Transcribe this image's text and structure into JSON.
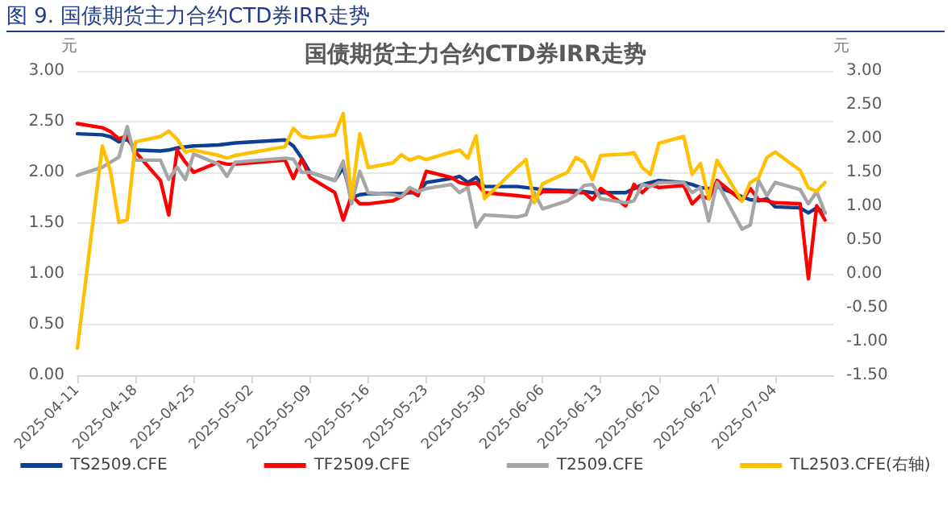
{
  "chart_data": {
    "type": "line",
    "title": "国债期货主力合约CTD券IRR走势",
    "annotations": [
      "图 9. 国债期货主力合约CTD券IRR走势"
    ],
    "ylabel": "元",
    "y2label": "元",
    "x": [
      "2025-04-11",
      "2025-04-14",
      "2025-04-15",
      "2025-04-16",
      "2025-04-17",
      "2025-04-18",
      "2025-04-21",
      "2025-04-22",
      "2025-04-23",
      "2025-04-24",
      "2025-04-25",
      "2025-04-28",
      "2025-04-29",
      "2025-04-30",
      "2025-05-06",
      "2025-05-07",
      "2025-05-08",
      "2025-05-09",
      "2025-05-12",
      "2025-05-13",
      "2025-05-14",
      "2025-05-15",
      "2025-05-16",
      "2025-05-19",
      "2025-05-20",
      "2025-05-21",
      "2025-05-22",
      "2025-05-23",
      "2025-05-26",
      "2025-05-27",
      "2025-05-28",
      "2025-05-29",
      "2025-05-30",
      "2025-06-03",
      "2025-06-04",
      "2025-06-05",
      "2025-06-06",
      "2025-06-09",
      "2025-06-10",
      "2025-06-11",
      "2025-06-12",
      "2025-06-13",
      "2025-06-16",
      "2025-06-17",
      "2025-06-18",
      "2025-06-19",
      "2025-06-20",
      "2025-06-23",
      "2025-06-24",
      "2025-06-25",
      "2025-06-26",
      "2025-06-27",
      "2025-06-30",
      "2025-07-01",
      "2025-07-02",
      "2025-07-03",
      "2025-07-04",
      "2025-07-07",
      "2025-07-08",
      "2025-07-09",
      "2025-07-10"
    ],
    "series": [
      {
        "name": "TS2509.CFE",
        "color": "#0d3f94",
        "values": [
          2.38,
          2.37,
          2.35,
          2.3,
          2.33,
          2.22,
          2.21,
          2.22,
          2.24,
          2.25,
          2.26,
          2.27,
          2.28,
          2.29,
          2.32,
          2.26,
          2.14,
          2.0,
          1.92,
          2.05,
          1.75,
          1.78,
          1.79,
          1.79,
          1.79,
          1.8,
          1.8,
          1.9,
          1.94,
          1.96,
          1.9,
          1.95,
          1.86,
          1.86,
          1.85,
          1.84,
          1.83,
          1.82,
          1.82,
          1.81,
          1.8,
          1.8,
          1.8,
          1.84,
          1.88,
          1.9,
          1.92,
          1.9,
          1.88,
          1.85,
          1.84,
          1.86,
          1.76,
          1.73,
          1.72,
          1.74,
          1.66,
          1.65,
          1.6,
          1.65,
          1.6
        ]
      },
      {
        "name": "TF2509.CFE",
        "color": "#ff0000",
        "values": [
          2.48,
          2.44,
          2.4,
          2.33,
          2.36,
          2.2,
          1.92,
          1.58,
          2.22,
          2.1,
          2.0,
          2.1,
          2.08,
          2.08,
          2.12,
          1.94,
          2.13,
          1.95,
          1.8,
          1.53,
          1.77,
          1.69,
          1.69,
          1.72,
          1.76,
          1.82,
          1.77,
          2.01,
          1.95,
          1.9,
          1.88,
          1.9,
          1.8,
          1.77,
          1.76,
          1.75,
          1.81,
          1.81,
          1.8,
          1.8,
          1.73,
          1.84,
          1.67,
          1.88,
          1.8,
          1.88,
          1.85,
          1.87,
          1.69,
          1.77,
          1.74,
          1.92,
          1.72,
          1.84,
          1.73,
          1.72,
          1.7,
          1.69,
          0.95,
          1.67,
          1.53
        ]
      },
      {
        "name": "T2509.CFE",
        "color": "#a6a6a6",
        "values": [
          1.97,
          2.05,
          2.1,
          2.15,
          2.45,
          2.12,
          2.12,
          1.93,
          2.05,
          1.93,
          2.18,
          2.08,
          1.96,
          2.1,
          2.14,
          2.13,
          2.0,
          2.0,
          1.92,
          2.11,
          1.69,
          2.01,
          1.8,
          1.78,
          1.76,
          1.85,
          1.81,
          1.84,
          1.88,
          1.8,
          1.85,
          1.46,
          1.58,
          1.56,
          1.58,
          1.8,
          1.64,
          1.72,
          1.78,
          1.87,
          1.88,
          1.74,
          1.7,
          1.72,
          1.88,
          1.86,
          1.9,
          1.9,
          1.8,
          1.85,
          1.52,
          1.9,
          1.44,
          1.48,
          1.92,
          1.77,
          1.9,
          1.83,
          1.69,
          1.81,
          1.6
        ]
      },
      {
        "name": "TL2503.CFE(右轴)",
        "color": "#ffc000",
        "axis": "y2",
        "values": [
          -1.1,
          1.89,
          1.51,
          0.76,
          0.8,
          1.95,
          2.03,
          2.11,
          1.99,
          1.8,
          1.83,
          1.75,
          1.71,
          1.75,
          1.88,
          2.15,
          2.03,
          2.01,
          2.05,
          2.37,
          1.12,
          2.07,
          1.57,
          1.64,
          1.76,
          1.68,
          1.73,
          1.69,
          1.8,
          1.83,
          1.71,
          2.04,
          1.11,
          1.58,
          1.69,
          1.05,
          1.33,
          1.5,
          1.72,
          1.65,
          1.39,
          1.75,
          1.77,
          1.79,
          1.57,
          1.47,
          1.93,
          2.03,
          1.47,
          1.63,
          1.11,
          1.68,
          1.07,
          1.35,
          1.42,
          1.72,
          1.8,
          1.53,
          1.27,
          1.22,
          1.35
        ]
      }
    ],
    "xlim": [
      "2025-04-11",
      "2025-07-11"
    ],
    "xticks": [
      "2025-04-11",
      "2025-04-18",
      "2025-04-25",
      "2025-05-02",
      "2025-05-09",
      "2025-05-16",
      "2025-05-23",
      "2025-05-30",
      "2025-06-06",
      "2025-06-13",
      "2025-06-20",
      "2025-06-27",
      "2025-07-04"
    ],
    "ylim": [
      0,
      3
    ],
    "yticks": [
      {
        "value": 0,
        "label": "0.00"
      },
      {
        "value": 0.5,
        "label": "0.50"
      },
      {
        "value": 1,
        "label": "1.00"
      },
      {
        "value": 1.5,
        "label": "1.50"
      },
      {
        "value": 2,
        "label": "2.00"
      },
      {
        "value": 2.5,
        "label": "2.50"
      },
      {
        "value": 3,
        "label": "3.00"
      }
    ],
    "y2lim": [
      -1.5,
      3
    ],
    "y2ticks": [
      {
        "value": -1.5,
        "label": "-1.50"
      },
      {
        "value": -1,
        "label": "-1.00"
      },
      {
        "value": -0.5,
        "label": "-0.50"
      },
      {
        "value": 0,
        "label": "0.00"
      },
      {
        "value": 0.5,
        "label": "0.50"
      },
      {
        "value": 1,
        "label": "1.00"
      },
      {
        "value": 1.5,
        "label": "1.50"
      },
      {
        "value": 2,
        "label": "2.00"
      },
      {
        "value": 2.5,
        "label": "2.50"
      },
      {
        "value": 3,
        "label": "3.00"
      }
    ],
    "grid": "y",
    "legend": "bottom",
    "marker": "none",
    "line_style": "solid"
  }
}
